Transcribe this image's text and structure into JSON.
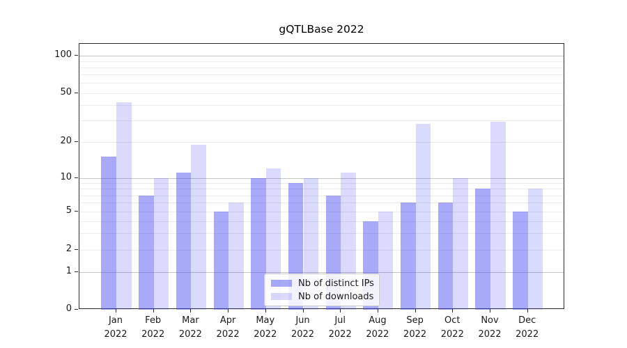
{
  "title": "gQTLBase 2022",
  "chart_data": {
    "type": "bar",
    "title": "gQTLBase 2022",
    "categories": [
      "Jan 2022",
      "Feb 2022",
      "Mar 2022",
      "Apr 2022",
      "May 2022",
      "Jun 2022",
      "Jul 2022",
      "Aug 2022",
      "Sep 2022",
      "Oct 2022",
      "Nov 2022",
      "Dec 2022"
    ],
    "months": [
      "Jan",
      "Feb",
      "Mar",
      "Apr",
      "May",
      "Jun",
      "Jul",
      "Aug",
      "Sep",
      "Oct",
      "Nov",
      "Dec"
    ],
    "year_label": "2022",
    "series": [
      {
        "name": "Nb of distinct IPs",
        "color": "#a8a8f6",
        "css_color": "rgba(72,72,242,0.47)",
        "values": [
          15,
          7,
          11,
          5,
          10,
          9,
          7,
          4,
          6,
          6,
          8,
          5
        ]
      },
      {
        "name": "Nb of downloads",
        "color": "#d9d9f8",
        "css_color": "rgba(72,72,242,0.20)",
        "values": [
          42,
          10,
          19,
          6,
          12,
          10,
          11,
          5,
          28,
          10,
          29,
          8
        ]
      }
    ],
    "y_ticks": [
      0,
      1,
      2,
      5,
      10,
      20,
      50,
      100
    ],
    "y_tick_labels": [
      "0",
      "1",
      "2",
      "5",
      "10",
      "20",
      "50",
      "100"
    ],
    "ylim": [
      0,
      120
    ],
    "yscale": "log-like",
    "grid": "on",
    "legend_position": "lower center",
    "colors": {
      "grid_major": "#c4c4c4",
      "grid_minor": "#ebebeb",
      "axis": "#2b2b2b"
    }
  }
}
